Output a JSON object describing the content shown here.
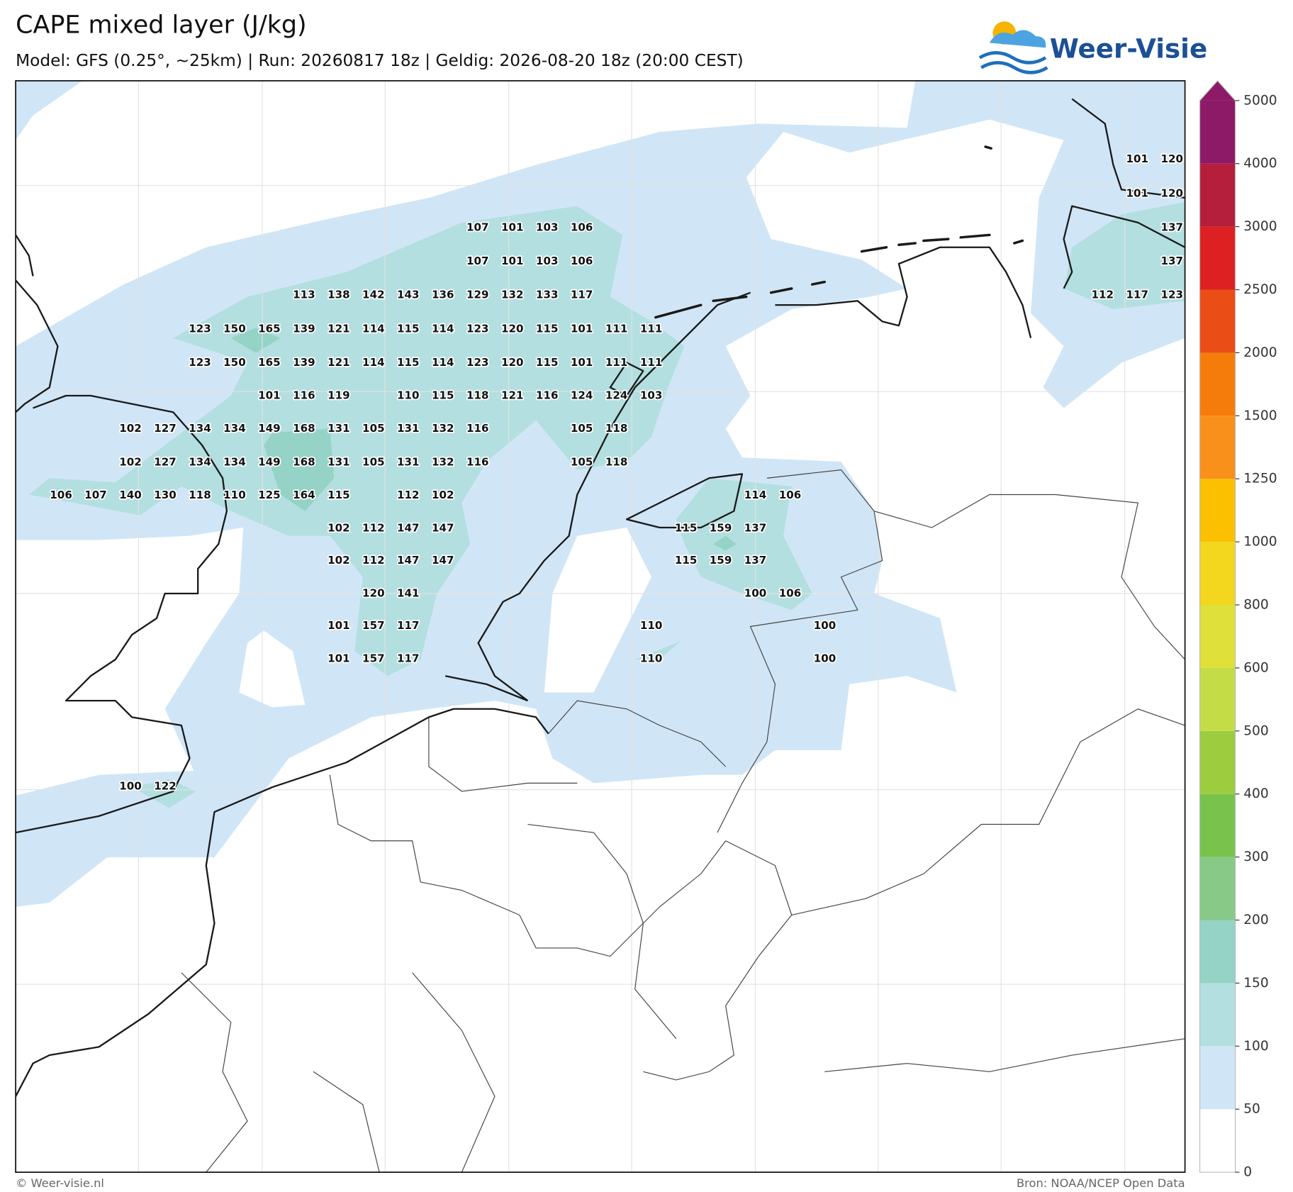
{
  "header": {
    "title": "CAPE mixed layer (J/kg)",
    "subtitle": "Model: GFS (0.25°, ~25km)  |  Run: 20260817 18z  |  Geldig: 2026-08-20 18z (20:00 CEST)",
    "logo": "Weer-Visie"
  },
  "colorbar": {
    "ticks": [
      0,
      50,
      100,
      150,
      200,
      300,
      400,
      500,
      600,
      800,
      1000,
      1250,
      1500,
      2000,
      2500,
      3000,
      4000,
      5000
    ],
    "colors": [
      "#ffffff",
      "#d0e6f6",
      "#b3dfe0",
      "#94d3c6",
      "#88c987",
      "#79c34c",
      "#9dcd3f",
      "#c4dd46",
      "#dfe03a",
      "#f3d61e",
      "#fbc100",
      "#f9901b",
      "#f57c0b",
      "#ea4d16",
      "#dd2123",
      "#b51f3b",
      "#8d1a66"
    ],
    "extend_color": "#8d1a66"
  },
  "map": {
    "cape_labels": [
      [
        null,
        null,
        null,
        null,
        null,
        null,
        null,
        null,
        null,
        null,
        null,
        null,
        null,
        null,
        null,
        null,
        null,
        null,
        null,
        null,
        null,
        null,
        null,
        null,
        null,
        null,
        null,
        null,
        null,
        null,
        null,
        101,
        120
      ],
      [
        null,
        null,
        null,
        null,
        null,
        null,
        null,
        null,
        null,
        null,
        null,
        null,
        null,
        null,
        null,
        null,
        null,
        null,
        null,
        null,
        null,
        null,
        null,
        null,
        null,
        null,
        null,
        null,
        null,
        null,
        null,
        101,
        120
      ],
      [
        null,
        null,
        null,
        null,
        null,
        null,
        null,
        null,
        null,
        null,
        null,
        null,
        107,
        101,
        103,
        106,
        null,
        null,
        null,
        null,
        null,
        null,
        null,
        null,
        null,
        null,
        null,
        null,
        null,
        null,
        null,
        null,
        137
      ],
      [
        null,
        null,
        null,
        null,
        null,
        null,
        null,
        null,
        null,
        null,
        null,
        null,
        107,
        101,
        103,
        106,
        null,
        null,
        null,
        null,
        null,
        null,
        null,
        null,
        null,
        null,
        null,
        null,
        null,
        null,
        null,
        null,
        137
      ],
      [
        null,
        null,
        null,
        null,
        null,
        null,
        null,
        113,
        138,
        142,
        143,
        136,
        129,
        132,
        133,
        117,
        null,
        null,
        null,
        null,
        null,
        null,
        null,
        null,
        null,
        null,
        null,
        null,
        null,
        null,
        112,
        117,
        123
      ],
      [
        null,
        null,
        null,
        null,
        123,
        150,
        165,
        139,
        121,
        114,
        115,
        114,
        123,
        120,
        115,
        101,
        111,
        111
      ],
      [
        null,
        null,
        null,
        null,
        123,
        150,
        165,
        139,
        121,
        114,
        115,
        114,
        123,
        120,
        115,
        101,
        111,
        111
      ],
      [
        null,
        null,
        null,
        null,
        null,
        null,
        101,
        116,
        119,
        null,
        110,
        115,
        118,
        121,
        116,
        124,
        124,
        103
      ],
      [
        null,
        null,
        102,
        127,
        134,
        134,
        149,
        168,
        131,
        105,
        131,
        132,
        116,
        null,
        null,
        105,
        118
      ],
      [
        null,
        null,
        102,
        127,
        134,
        134,
        149,
        168,
        131,
        105,
        131,
        132,
        116,
        null,
        null,
        105,
        118
      ],
      [
        106,
        107,
        140,
        130,
        118,
        110,
        125,
        164,
        115,
        null,
        112,
        102,
        null,
        null,
        null,
        null,
        null,
        null,
        null,
        null,
        114,
        106
      ],
      [
        null,
        null,
        null,
        null,
        null,
        null,
        null,
        null,
        102,
        112,
        147,
        147,
        null,
        null,
        null,
        null,
        null,
        null,
        115,
        159,
        137
      ],
      [
        null,
        null,
        null,
        null,
        null,
        null,
        null,
        null,
        102,
        112,
        147,
        147,
        null,
        null,
        null,
        null,
        null,
        null,
        115,
        159,
        137
      ],
      [
        null,
        null,
        null,
        null,
        null,
        null,
        null,
        null,
        null,
        120,
        141,
        null,
        null,
        null,
        null,
        null,
        null,
        null,
        null,
        null,
        100,
        106
      ],
      [
        null,
        null,
        null,
        null,
        null,
        null,
        null,
        null,
        101,
        157,
        117,
        null,
        null,
        null,
        null,
        null,
        null,
        110,
        null,
        null,
        null,
        null,
        100
      ],
      [
        null,
        null,
        null,
        null,
        null,
        null,
        null,
        null,
        101,
        157,
        117,
        null,
        null,
        null,
        null,
        null,
        null,
        110,
        null,
        null,
        null,
        null,
        100
      ],
      [
        null,
        null,
        100,
        122
      ]
    ]
  },
  "footer": {
    "left": "© Weer-visie.nl",
    "right": "Bron: NOAA/NCEP Open Data"
  }
}
